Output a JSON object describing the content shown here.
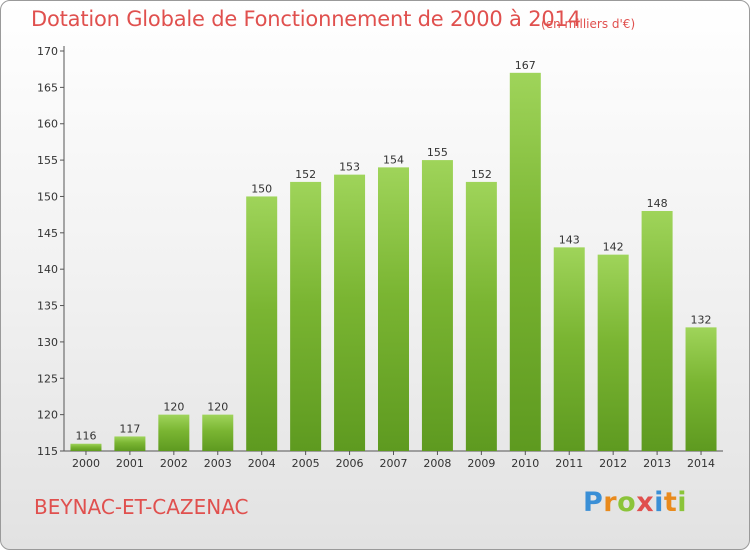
{
  "header": {
    "title": "Dotation Globale de Fonctionnement de 2000 à 2014",
    "unit": "(en milliers d'€)"
  },
  "footer": {
    "place": "BEYNAC-ET-CAZENAC",
    "logo": {
      "text": "Proxiti",
      "letters": [
        {
          "ch": "P",
          "color": "#3a8fd6"
        },
        {
          "ch": "r",
          "color": "#e98a1c"
        },
        {
          "ch": "o",
          "color": "#8bc43a"
        },
        {
          "ch": "x",
          "color": "#e0504e"
        },
        {
          "ch": "i",
          "color": "#3a8fd6"
        },
        {
          "ch": "t",
          "color": "#e98a1c"
        },
        {
          "ch": "i",
          "color": "#8bc43a"
        }
      ]
    }
  },
  "chart_data": {
    "type": "bar",
    "categories": [
      "2000",
      "2001",
      "2002",
      "2003",
      "2004",
      "2005",
      "2006",
      "2007",
      "2008",
      "2009",
      "2010",
      "2011",
      "2012",
      "2013",
      "2014"
    ],
    "values": [
      116,
      117,
      120,
      120,
      150,
      152,
      153,
      154,
      155,
      152,
      167,
      143,
      142,
      148,
      132
    ],
    "ylim": [
      115,
      170
    ],
    "yticks": [
      115,
      120,
      125,
      130,
      135,
      140,
      145,
      150,
      155,
      160,
      165,
      170
    ],
    "title": "Dotation Globale de Fonctionnement de 2000 à 2014",
    "xlabel": "",
    "ylabel": "",
    "grid": false,
    "bar_color": "#7ab532",
    "bar_color_light": "#9fd45a",
    "bar_color_dark": "#5e9a20"
  }
}
